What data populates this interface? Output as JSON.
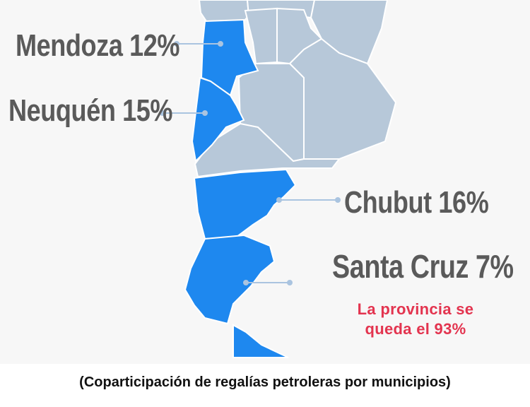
{
  "map": {
    "labels": {
      "mendoza": "Mendoza 12%",
      "neuquen": "Neuquén 15%",
      "chubut": "Chubut 16%",
      "santa_cruz": "Santa Cruz 7%"
    },
    "note": {
      "line1": "La provincia se",
      "line2": "queda el 93%"
    },
    "caption": "(Coparticipación de regalías petroleras por municipios)",
    "colors": {
      "highlighted_province": "#1e88ef",
      "other_province": "#b7c8d9",
      "border": "#ffffff",
      "leader_line": "#aac4e0",
      "label_text": "#5a5a5a",
      "note_text": "#e3344f"
    }
  }
}
